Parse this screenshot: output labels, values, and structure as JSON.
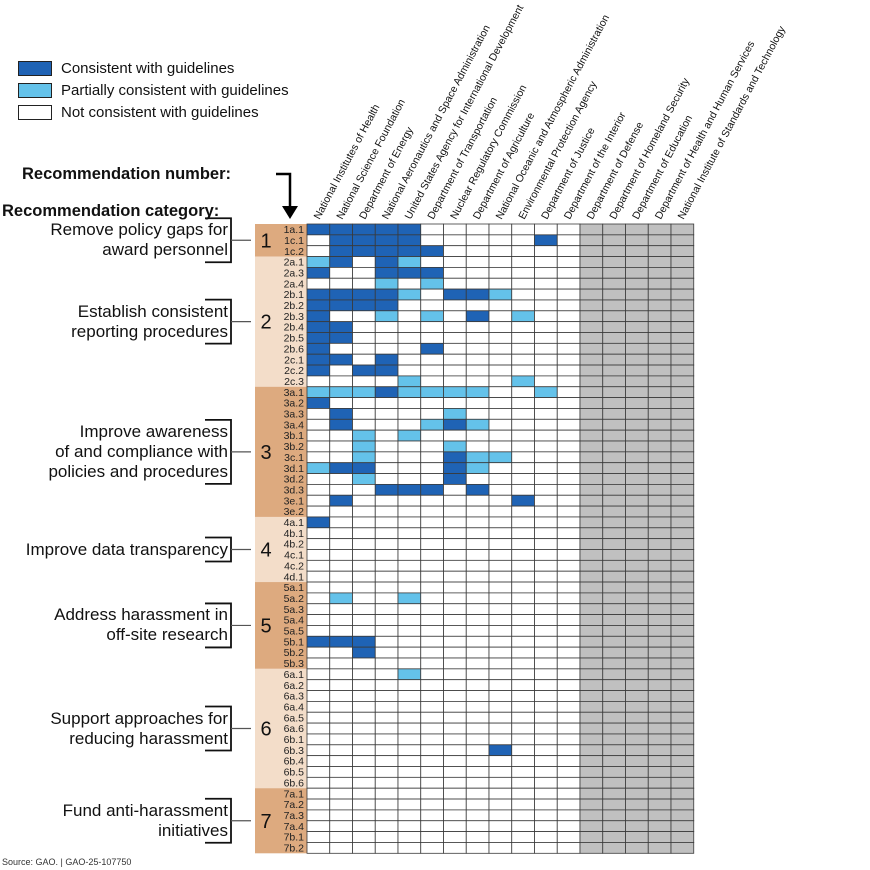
{
  "legend": [
    {
      "key": "C",
      "label": "Consistent with guidelines",
      "color": "#1f63b5"
    },
    {
      "key": "P",
      "label": "Partially consistent with guidelines",
      "color": "#64c2ea"
    },
    {
      "key": "N",
      "label": "Not consistent with guidelines",
      "color": "#ffffff"
    }
  ],
  "headings": {
    "recommendation_number": "Recommendation number:",
    "recommendation_category": "Recommendation category:"
  },
  "source": "Source: GAO.  |  GAO-25-107750",
  "chart_data": {
    "type": "heatmap",
    "title": "",
    "xlabel": "",
    "ylabel": "",
    "status_key": {
      "C": "Consistent with guidelines",
      "P": "Partially consistent with guidelines",
      "N": "Not consistent with guidelines",
      "G": "Not assessed (grey)"
    },
    "colors": {
      "C": "#1f63b5",
      "P": "#64c2ea",
      "N": "#ffffff",
      "G": "#c0c0c0"
    },
    "columns": [
      "National Institutes of Health",
      "National Science Foundation",
      "Department of Energy",
      "National Aeronautics and Space Administration",
      "United States Agency for International Development",
      "Department of Transportation",
      "Nuclear Regulatory Commission",
      "Department of Agriculture",
      "National Oceanic and Atmospheric Administration",
      "Environmental Protection Agency",
      "Department of Justice",
      "Department of the Interior",
      "Department of Defense",
      "Department of Homeland Security",
      "Department of Education",
      "Department of Health and Human Services",
      "National Institute of Standards and Technology"
    ],
    "grey_columns_from_index": 12,
    "categories": [
      {
        "number": "1",
        "label_lines": [
          "Remove policy gaps for",
          "award personnel"
        ],
        "shade": "dark",
        "rows": [
          {
            "id": "1a.1",
            "cells": "CCCCCNNNNNNN"
          },
          {
            "id": "1c.1",
            "cells": "NCCCCNNNNNCN"
          },
          {
            "id": "1c.2",
            "cells": "NCCCCCNNNNNN"
          }
        ]
      },
      {
        "number": "2",
        "label_lines": [
          "Establish consistent",
          "reporting procedures"
        ],
        "shade": "light",
        "rows": [
          {
            "id": "2a.1",
            "cells": "PCNCPNNNNNNN"
          },
          {
            "id": "2a.3",
            "cells": "CNNCCCNNNNNN"
          },
          {
            "id": "2a.4",
            "cells": "NNNPNPNNNNNN"
          },
          {
            "id": "2b.1",
            "cells": "CCCCPNCCPNNN"
          },
          {
            "id": "2b.2",
            "cells": "CCCCNNNNNNNN"
          },
          {
            "id": "2b.3",
            "cells": "CNNPNPNCNPNN"
          },
          {
            "id": "2b.4",
            "cells": "CCNNNNNNNNNN"
          },
          {
            "id": "2b.5",
            "cells": "CCNNNNNNNNNN"
          },
          {
            "id": "2b.6",
            "cells": "CNNNNCNNNNNN"
          },
          {
            "id": "2c.1",
            "cells": "CCNCNNNNNNNN"
          },
          {
            "id": "2c.2",
            "cells": "CNCCNNNNNNNN"
          },
          {
            "id": "2c.3",
            "cells": "NNNNPNNNNPNN"
          }
        ]
      },
      {
        "number": "3",
        "label_lines": [
          "Improve awareness",
          "of and compliance with",
          "policies and procedures"
        ],
        "shade": "dark",
        "rows": [
          {
            "id": "3a.1",
            "cells": "PPPCPPPPNNPN"
          },
          {
            "id": "3a.2",
            "cells": "CNNNNNNNNNNN"
          },
          {
            "id": "3a.3",
            "cells": "NCNNNNPNNNNN"
          },
          {
            "id": "3a.4",
            "cells": "NCNNNPCPNNNN"
          },
          {
            "id": "3b.1",
            "cells": "NNPNPNNNNNNN"
          },
          {
            "id": "3b.2",
            "cells": "NNPNNNPNNNNN"
          },
          {
            "id": "3c.1",
            "cells": "NNPNNNCPPNNN"
          },
          {
            "id": "3d.1",
            "cells": "PCCNNNCPNNNN"
          },
          {
            "id": "3d.2",
            "cells": "NNPNNNCNNNNN"
          },
          {
            "id": "3d.3",
            "cells": "NNNCCCNCNNNN"
          },
          {
            "id": "3e.1",
            "cells": "NCNNNNNNNCNN"
          },
          {
            "id": "3e.2",
            "cells": "NNNNNNNNNNNN"
          }
        ]
      },
      {
        "number": "4",
        "label_lines": [
          "Improve data transparency"
        ],
        "shade": "light",
        "rows": [
          {
            "id": "4a.1",
            "cells": "CNNNNNNNNNNN"
          },
          {
            "id": "4b.1",
            "cells": "NNNNNNNNNNNN"
          },
          {
            "id": "4b.2",
            "cells": "NNNNNNNNNNNN"
          },
          {
            "id": "4c.1",
            "cells": "NNNNNNNNNNNN"
          },
          {
            "id": "4c.2",
            "cells": "NNNNNNNNNNNN"
          },
          {
            "id": "4d.1",
            "cells": "NNNNNNNNNNNN"
          }
        ]
      },
      {
        "number": "5",
        "label_lines": [
          "Address harassment in",
          "off-site research"
        ],
        "shade": "dark",
        "rows": [
          {
            "id": "5a.1",
            "cells": "NNNNNNNNNNNN"
          },
          {
            "id": "5a.2",
            "cells": "NPNNPNNNNNNN"
          },
          {
            "id": "5a.3",
            "cells": "NNNNNNNNNNNN"
          },
          {
            "id": "5a.4",
            "cells": "NNNNNNNNNNNN"
          },
          {
            "id": "5a.5",
            "cells": "NNNNNNNNNNNN"
          },
          {
            "id": "5b.1",
            "cells": "CCCNNNNNNNNN"
          },
          {
            "id": "5b.2",
            "cells": "NNCNNNNNNNNN"
          },
          {
            "id": "5b.3",
            "cells": "NNNNNNNNNNNN"
          }
        ]
      },
      {
        "number": "6",
        "label_lines": [
          "Support approaches for",
          "reducing harassment"
        ],
        "shade": "light",
        "rows": [
          {
            "id": "6a.1",
            "cells": "NNNNPNNNNNNN"
          },
          {
            "id": "6a.2",
            "cells": "NNNNNNNNNNNN"
          },
          {
            "id": "6a.3",
            "cells": "NNNNNNNNNNNN"
          },
          {
            "id": "6a.4",
            "cells": "NNNNNNNNNNNN"
          },
          {
            "id": "6a.5",
            "cells": "NNNNNNNNNNNN"
          },
          {
            "id": "6a.6",
            "cells": "NNNNNNNNNNNN"
          },
          {
            "id": "6b.1",
            "cells": "NNNNNNNNNNNN"
          },
          {
            "id": "6b.3",
            "cells": "NNNNNNNNCNNN"
          },
          {
            "id": "6b.4",
            "cells": "NNNNNNNNNNNN"
          },
          {
            "id": "6b.5",
            "cells": "NNNNNNNNNNNN"
          },
          {
            "id": "6b.6",
            "cells": "NNNNNNNNNNNN"
          }
        ]
      },
      {
        "number": "7",
        "label_lines": [
          "Fund anti-harassment",
          "initiatives"
        ],
        "shade": "dark",
        "rows": [
          {
            "id": "7a.1",
            "cells": "NNNNNNNNNNNN"
          },
          {
            "id": "7a.2",
            "cells": "NNNNNNNNNNNN"
          },
          {
            "id": "7a.3",
            "cells": "NNNNNNNNNNNN"
          },
          {
            "id": "7a.4",
            "cells": "NNNNNNNNNNNN"
          },
          {
            "id": "7b.1",
            "cells": "NNNNNNNNNNNN"
          },
          {
            "id": "7b.2",
            "cells": "NNNNNNNNNNNN"
          }
        ]
      }
    ],
    "band_colors": {
      "dark": "#ddaa7f",
      "light": "#f3ddc9"
    }
  }
}
